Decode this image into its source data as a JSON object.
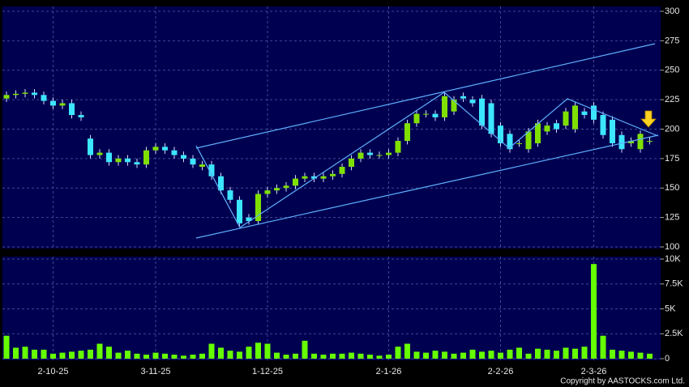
{
  "chart_data": [
    {
      "type": "candlestick",
      "ylim": [
        100,
        300
      ],
      "yticks": [
        100,
        125,
        150,
        175,
        200,
        225,
        250,
        275,
        300
      ],
      "grid": true,
      "up_color": "#7fe000",
      "down_color": "#3ce6ff",
      "open": [
        226,
        229,
        230,
        231,
        229,
        224,
        220,
        222,
        212,
        192,
        178,
        180,
        172,
        175,
        172,
        170,
        182,
        185,
        182,
        178,
        175,
        168,
        170,
        160,
        148,
        140,
        125,
        122,
        145,
        148,
        150,
        152,
        158,
        160,
        158,
        160,
        162,
        168,
        175,
        180,
        178,
        178,
        180,
        190,
        205,
        213,
        213,
        210,
        215,
        228,
        225,
        226,
        222,
        203,
        196,
        188,
        183,
        188,
        198,
        205,
        203,
        200,
        215,
        220,
        212,
        208,
        195,
        188,
        183,
        190
      ],
      "high": [
        232,
        233,
        234,
        234,
        232,
        227,
        225,
        225,
        215,
        195,
        183,
        183,
        178,
        178,
        175,
        185,
        188,
        188,
        185,
        181,
        178,
        173,
        173,
        163,
        151,
        143,
        128,
        148,
        151,
        153,
        155,
        161,
        163,
        163,
        163,
        165,
        171,
        178,
        183,
        183,
        181,
        183,
        193,
        208,
        216,
        216,
        216,
        231,
        228,
        231,
        228,
        229,
        225,
        206,
        199,
        191,
        201,
        208,
        206,
        208,
        218,
        223,
        218,
        223,
        215,
        211,
        198,
        193,
        199,
        193
      ],
      "low": [
        223,
        226,
        227,
        226,
        221,
        217,
        217,
        209,
        207,
        175,
        175,
        169,
        169,
        169,
        167,
        167,
        179,
        179,
        175,
        172,
        167,
        165,
        157,
        145,
        137,
        117,
        119,
        119,
        142,
        145,
        147,
        149,
        155,
        155,
        155,
        157,
        159,
        165,
        172,
        175,
        175,
        175,
        177,
        187,
        202,
        210,
        207,
        207,
        212,
        223,
        219,
        200,
        193,
        185,
        180,
        185,
        180,
        185,
        195,
        197,
        200,
        197,
        209,
        205,
        192,
        185,
        180,
        185,
        180,
        187
      ],
      "close": [
        229,
        230,
        231,
        229,
        224,
        220,
        222,
        212,
        210,
        178,
        180,
        172,
        175,
        172,
        170,
        182,
        185,
        182,
        178,
        175,
        170,
        170,
        160,
        148,
        140,
        120,
        122,
        145,
        148,
        150,
        152,
        158,
        160,
        158,
        160,
        162,
        168,
        175,
        180,
        178,
        178,
        180,
        190,
        205,
        213,
        213,
        210,
        228,
        225,
        226,
        222,
        203,
        196,
        188,
        183,
        188,
        198,
        205,
        203,
        200,
        215,
        220,
        212,
        208,
        195,
        188,
        183,
        190,
        196,
        190
      ]
    },
    {
      "type": "bar",
      "color": "#66ff00",
      "ylim": [
        0,
        10000
      ],
      "yticks": [
        0,
        {
          "value": 2500,
          "label": "2.5K"
        },
        {
          "value": 5000,
          "label": "5K"
        },
        {
          "value": 7500,
          "label": "7.5K"
        },
        {
          "value": 10000,
          "label": "10K"
        }
      ],
      "grid": true,
      "categories": [
        null,
        null,
        null,
        null,
        null,
        "2-10-25",
        null,
        null,
        null,
        null,
        null,
        null,
        null,
        null,
        null,
        null,
        "3-11-25",
        null,
        null,
        null,
        null,
        null,
        null,
        null,
        null,
        null,
        null,
        null,
        "1-12-25",
        null,
        null,
        null,
        null,
        null,
        null,
        null,
        null,
        null,
        null,
        null,
        null,
        "2-1-26",
        null,
        null,
        null,
        null,
        null,
        null,
        null,
        null,
        null,
        null,
        null,
        "2-2-26",
        null,
        null,
        null,
        null,
        null,
        null,
        null,
        null,
        null,
        "2-3-26",
        null,
        null,
        null,
        null,
        null,
        null
      ],
      "values": [
        2300,
        1100,
        1200,
        900,
        900,
        500,
        600,
        700,
        800,
        900,
        1500,
        1200,
        600,
        800,
        500,
        400,
        600,
        500,
        400,
        300,
        400,
        500,
        1500,
        1100,
        800,
        700,
        1200,
        1600,
        1500,
        600,
        400,
        500,
        1800,
        500,
        400,
        500,
        500,
        600,
        500,
        400,
        300,
        400,
        1200,
        1500,
        700,
        600,
        800,
        700,
        500,
        600,
        900,
        700,
        800,
        600,
        900,
        1100,
        500,
        1000,
        900,
        800,
        1100,
        1000,
        1200,
        9500,
        2300,
        900,
        800,
        700,
        600,
        500
      ]
    }
  ],
  "copyright": "Copyright by AASTOCKS.com Ltd."
}
